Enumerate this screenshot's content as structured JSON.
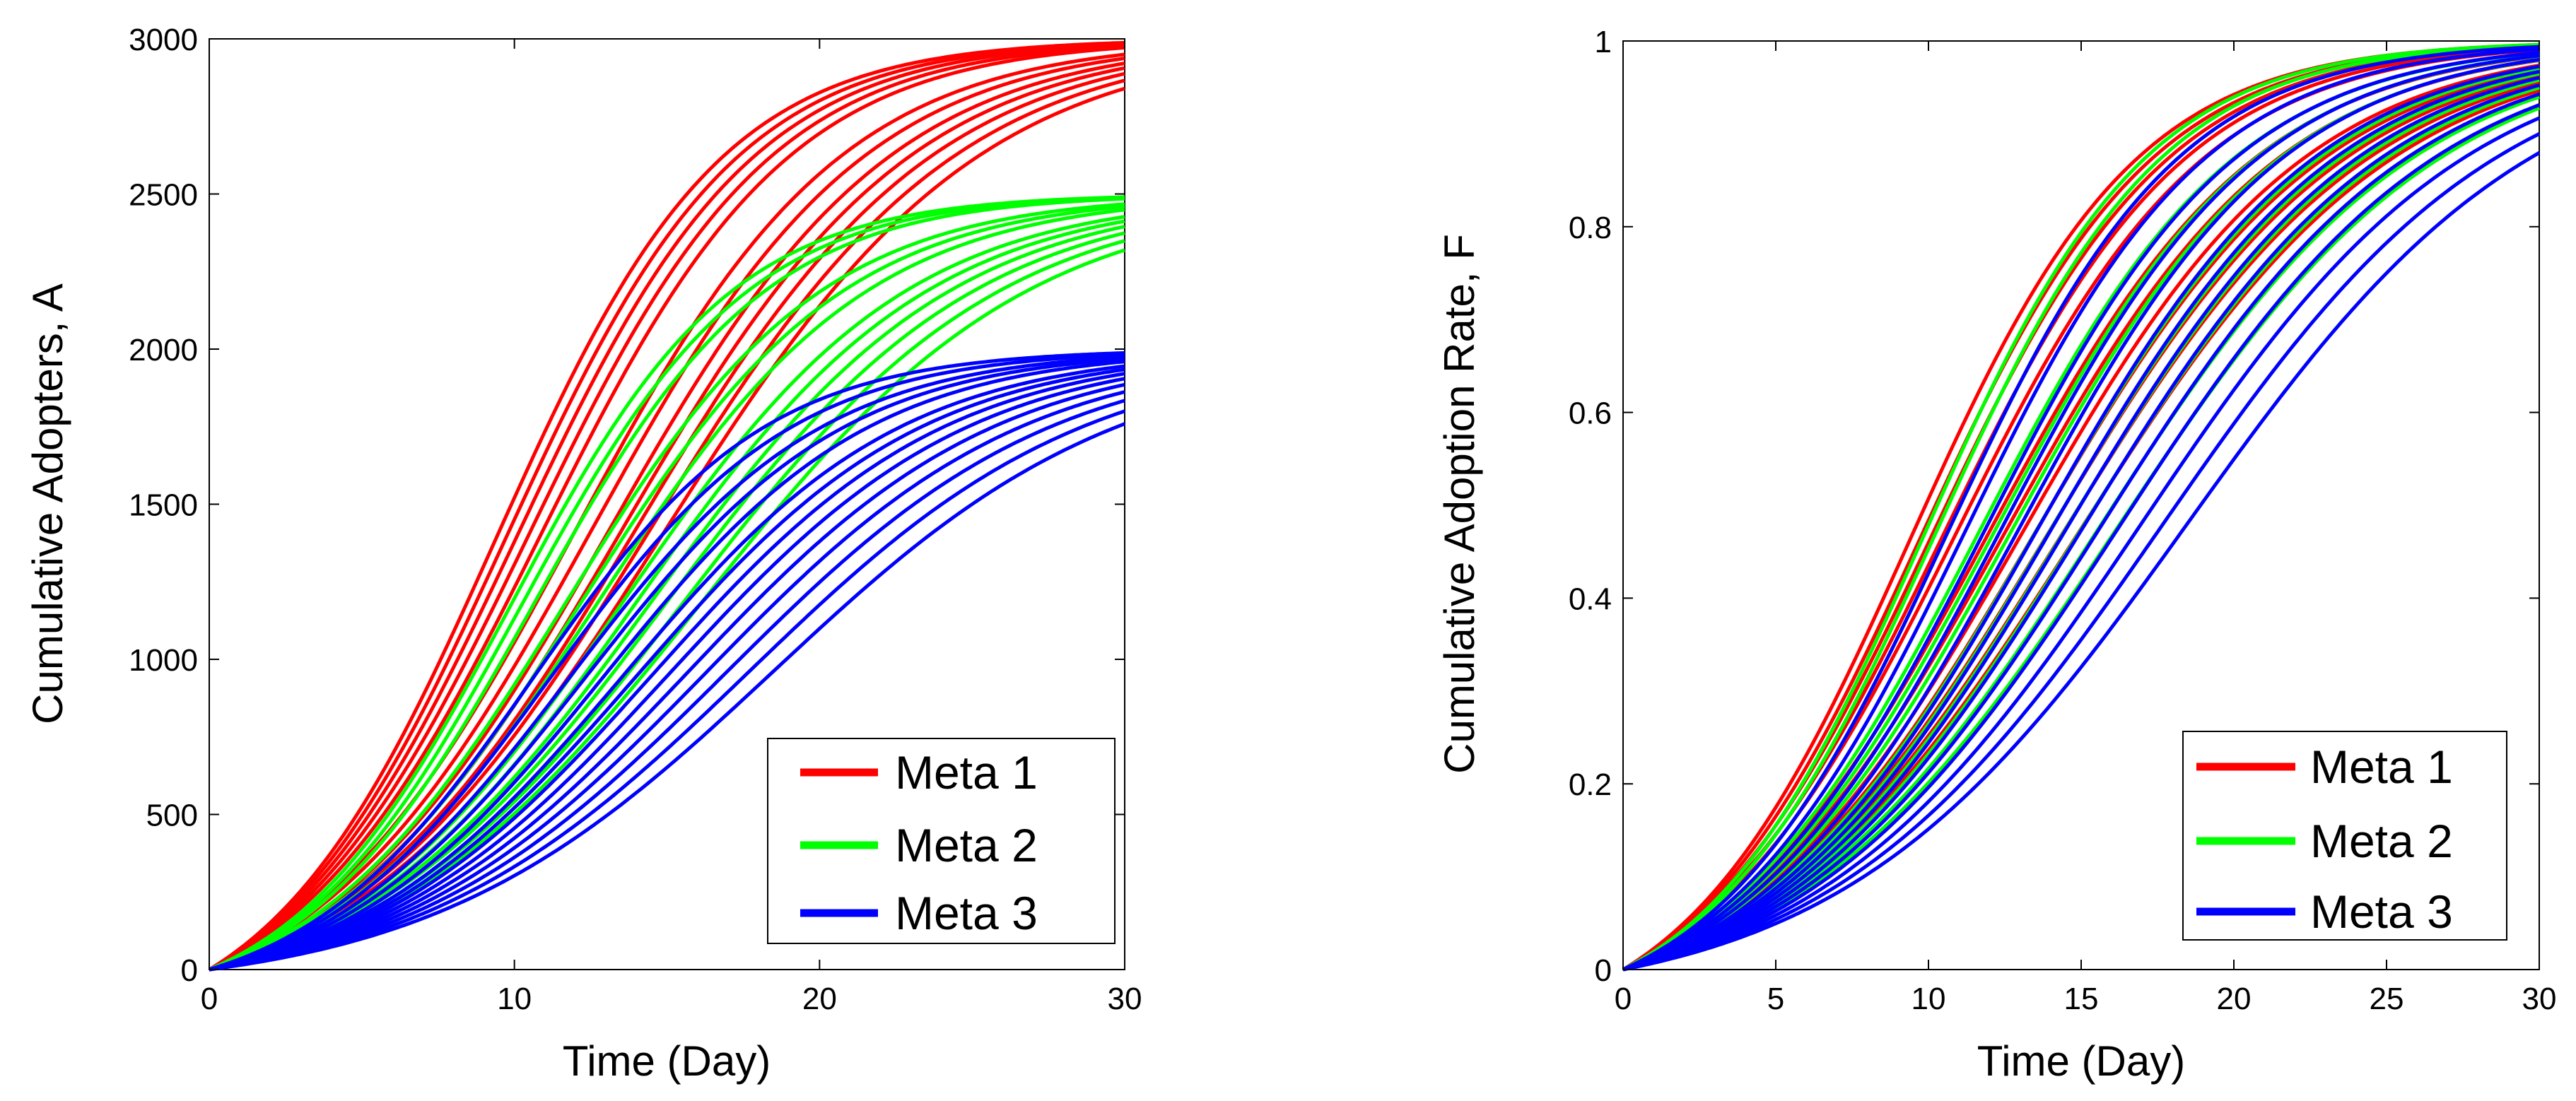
{
  "chart_data": [
    {
      "type": "line",
      "xlabel": "Time (Day)",
      "ylabel": "Cumulative Adopters, A",
      "xlim": [
        0,
        30
      ],
      "ylim": [
        0,
        3000
      ],
      "xticks": [
        "0",
        "10",
        "20",
        "30"
      ],
      "xtick_values": [
        0,
        10,
        20,
        30
      ],
      "yticks": [
        "0",
        "500",
        "1000",
        "1500",
        "2000",
        "2500",
        "3000"
      ],
      "ytick_values": [
        0,
        500,
        1000,
        1500,
        2000,
        2500,
        3000
      ],
      "legend_position": "bottom-right",
      "series": [
        {
          "name": "Meta 1",
          "color": "#ff0000",
          "model": "bass",
          "m": 3000,
          "curves": [
            {
              "p": 0.02,
              "q": 0.25
            },
            {
              "p": 0.019,
              "q": 0.245
            },
            {
              "p": 0.018,
              "q": 0.24
            },
            {
              "p": 0.017,
              "q": 0.235
            },
            {
              "p": 0.016,
              "q": 0.23
            },
            {
              "p": 0.014,
              "q": 0.215
            },
            {
              "p": 0.013,
              "q": 0.21
            },
            {
              "p": 0.012,
              "q": 0.205
            },
            {
              "p": 0.0115,
              "q": 0.2
            },
            {
              "p": 0.011,
              "q": 0.195
            },
            {
              "p": 0.0105,
              "q": 0.19
            },
            {
              "p": 0.01,
              "q": 0.185
            }
          ]
        },
        {
          "name": "Meta 2",
          "color": "#00ff00",
          "model": "bass",
          "m": 2500,
          "curves": [
            {
              "p": 0.017,
              "q": 0.26
            },
            {
              "p": 0.016,
              "q": 0.255
            },
            {
              "p": 0.015,
              "q": 0.25
            },
            {
              "p": 0.014,
              "q": 0.225
            },
            {
              "p": 0.013,
              "q": 0.22
            },
            {
              "p": 0.012,
              "q": 0.215
            },
            {
              "p": 0.011,
              "q": 0.205
            },
            {
              "p": 0.0105,
              "q": 0.2
            },
            {
              "p": 0.01,
              "q": 0.195
            },
            {
              "p": 0.0095,
              "q": 0.19
            },
            {
              "p": 0.009,
              "q": 0.185
            },
            {
              "p": 0.0085,
              "q": 0.18
            }
          ]
        },
        {
          "name": "Meta 3",
          "color": "#0000ff",
          "model": "bass",
          "m": 2000,
          "curves": [
            {
              "p": 0.015,
              "q": 0.25
            },
            {
              "p": 0.014,
              "q": 0.24
            },
            {
              "p": 0.013,
              "q": 0.23
            },
            {
              "p": 0.012,
              "q": 0.225
            },
            {
              "p": 0.011,
              "q": 0.22
            },
            {
              "p": 0.0105,
              "q": 0.21
            },
            {
              "p": 0.01,
              "q": 0.205
            },
            {
              "p": 0.0095,
              "q": 0.2
            },
            {
              "p": 0.009,
              "q": 0.195
            },
            {
              "p": 0.0085,
              "q": 0.19
            },
            {
              "p": 0.008,
              "q": 0.185
            },
            {
              "p": 0.0075,
              "q": 0.18
            },
            {
              "p": 0.007,
              "q": 0.175
            },
            {
              "p": 0.0065,
              "q": 0.17
            }
          ]
        }
      ]
    },
    {
      "type": "line",
      "xlabel": "Time (Day)",
      "ylabel": "Cumulative Adoption Rate, F",
      "xlim": [
        0,
        30
      ],
      "ylim": [
        0,
        1
      ],
      "xticks": [
        "0",
        "5",
        "10",
        "15",
        "20",
        "25",
        "30"
      ],
      "xtick_values": [
        0,
        5,
        10,
        15,
        20,
        25,
        30
      ],
      "yticks": [
        "0",
        "0.2",
        "0.4",
        "0.6",
        "0.8",
        "1"
      ],
      "ytick_values": [
        0,
        0.2,
        0.4,
        0.6,
        0.8,
        1
      ],
      "legend_position": "bottom-right",
      "series": [
        {
          "name": "Meta 1",
          "color": "#ff0000",
          "model": "bass",
          "m": 1,
          "curves": [
            {
              "p": 0.02,
              "q": 0.25
            },
            {
              "p": 0.019,
              "q": 0.245
            },
            {
              "p": 0.018,
              "q": 0.24
            },
            {
              "p": 0.017,
              "q": 0.235
            },
            {
              "p": 0.016,
              "q": 0.23
            },
            {
              "p": 0.014,
              "q": 0.215
            },
            {
              "p": 0.013,
              "q": 0.21
            },
            {
              "p": 0.012,
              "q": 0.205
            },
            {
              "p": 0.0115,
              "q": 0.2
            },
            {
              "p": 0.011,
              "q": 0.195
            },
            {
              "p": 0.0105,
              "q": 0.19
            },
            {
              "p": 0.01,
              "q": 0.185
            }
          ]
        },
        {
          "name": "Meta 2",
          "color": "#00ff00",
          "model": "bass",
          "m": 1,
          "curves": [
            {
              "p": 0.017,
              "q": 0.26
            },
            {
              "p": 0.016,
              "q": 0.255
            },
            {
              "p": 0.015,
              "q": 0.25
            },
            {
              "p": 0.014,
              "q": 0.225
            },
            {
              "p": 0.013,
              "q": 0.22
            },
            {
              "p": 0.012,
              "q": 0.215
            },
            {
              "p": 0.011,
              "q": 0.205
            },
            {
              "p": 0.0105,
              "q": 0.2
            },
            {
              "p": 0.01,
              "q": 0.195
            },
            {
              "p": 0.0095,
              "q": 0.19
            },
            {
              "p": 0.009,
              "q": 0.185
            },
            {
              "p": 0.0085,
              "q": 0.18
            }
          ]
        },
        {
          "name": "Meta 3",
          "color": "#0000ff",
          "model": "bass",
          "m": 1,
          "curves": [
            {
              "p": 0.015,
              "q": 0.25
            },
            {
              "p": 0.014,
              "q": 0.24
            },
            {
              "p": 0.013,
              "q": 0.23
            },
            {
              "p": 0.012,
              "q": 0.225
            },
            {
              "p": 0.011,
              "q": 0.22
            },
            {
              "p": 0.0105,
              "q": 0.21
            },
            {
              "p": 0.01,
              "q": 0.205
            },
            {
              "p": 0.0095,
              "q": 0.2
            },
            {
              "p": 0.009,
              "q": 0.195
            },
            {
              "p": 0.0085,
              "q": 0.19
            },
            {
              "p": 0.008,
              "q": 0.185
            },
            {
              "p": 0.0075,
              "q": 0.18
            },
            {
              "p": 0.007,
              "q": 0.175
            },
            {
              "p": 0.0065,
              "q": 0.17
            }
          ]
        }
      ]
    }
  ]
}
